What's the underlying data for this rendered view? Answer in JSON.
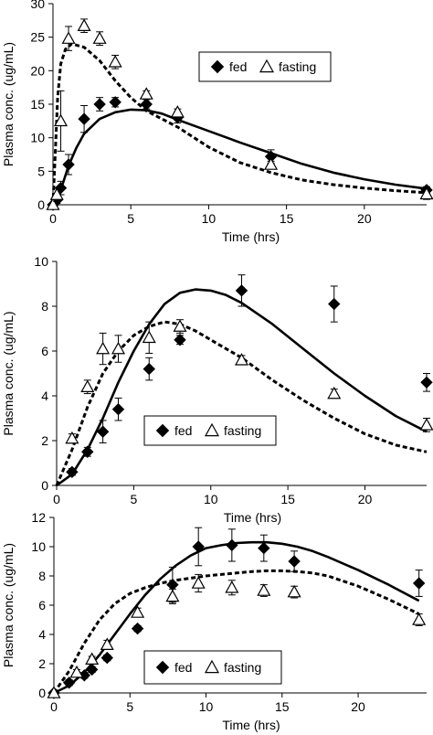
{
  "chart_data": [
    {
      "type": "scatter",
      "xlabel": "Time (hrs)",
      "ylabel": "Plasma conc. (ug/mL)",
      "xlim": [
        0,
        24
      ],
      "ylim": [
        0,
        30
      ],
      "xticks": [
        0,
        5,
        10,
        15,
        20
      ],
      "yticks": [
        0,
        5,
        10,
        15,
        20,
        25,
        30
      ],
      "legend_position": "top-right",
      "series": [
        {
          "name": "fed",
          "marker": "filled-diamond",
          "x": [
            0,
            0.25,
            0.5,
            1,
            2,
            3,
            4,
            6,
            8,
            14,
            24
          ],
          "y": [
            0,
            0.7,
            2.5,
            6,
            12.8,
            15,
            15.3,
            15,
            13,
            7.2,
            2.2
          ],
          "err": [
            0,
            0.5,
            1,
            1.5,
            2,
            1,
            0.7,
            0.7,
            0.8,
            1,
            0.5
          ]
        },
        {
          "name": "fasting",
          "marker": "open-triangle",
          "x": [
            0,
            0.25,
            0.5,
            1,
            2,
            3,
            4,
            6,
            8,
            14,
            24
          ],
          "y": [
            0,
            1.5,
            12.5,
            24.8,
            26.7,
            24.8,
            21.3,
            16.5,
            13.8,
            6,
            1.6
          ],
          "err": [
            0,
            1,
            4.5,
            1.8,
            1,
            1,
            1,
            0.5,
            0.5,
            0.5,
            0.8
          ]
        },
        {
          "name": "fed model",
          "style": "solid",
          "x": [
            0,
            0.5,
            1,
            1.5,
            2,
            3,
            4,
            5,
            6,
            7,
            8,
            10,
            12,
            14,
            16,
            18,
            20,
            22,
            24
          ],
          "y": [
            0,
            2.2,
            5.8,
            8.5,
            10.6,
            12.8,
            13.8,
            14.2,
            14.1,
            13.6,
            12.7,
            11,
            9.3,
            7.7,
            6.1,
            4.8,
            3.8,
            3,
            2.4
          ]
        },
        {
          "name": "fasting model",
          "style": "dashed",
          "x": [
            0,
            0.15,
            0.3,
            0.5,
            0.8,
            1.2,
            2,
            3,
            4,
            5,
            6,
            7,
            8,
            10,
            12,
            14,
            16,
            18,
            20,
            22,
            24
          ],
          "y": [
            0,
            8,
            16,
            21,
            23.2,
            24,
            23.5,
            21.5,
            18.5,
            16,
            14,
            12.8,
            11.6,
            8.6,
            6.3,
            4.8,
            3.7,
            3,
            2.5,
            2.1,
            1.8
          ]
        }
      ]
    },
    {
      "type": "scatter",
      "xlabel": "Time (hrs)",
      "ylabel": "Plasma conc. (ug/mL)",
      "xlim": [
        0,
        24
      ],
      "ylim": [
        0,
        10
      ],
      "xticks": [
        0,
        5,
        10,
        15,
        20
      ],
      "yticks": [
        0,
        2,
        4,
        6,
        8,
        10
      ],
      "legend_position": "bottom-center",
      "series": [
        {
          "name": "fed",
          "marker": "filled-diamond",
          "x": [
            1,
            2,
            3,
            4,
            6,
            8,
            12,
            18,
            24
          ],
          "y": [
            0.6,
            1.5,
            2.4,
            3.4,
            5.2,
            6.5,
            8.7,
            8.1,
            4.6
          ],
          "err": [
            0.15,
            0.2,
            0.5,
            0.5,
            0.5,
            0.2,
            0.7,
            0.8,
            0.4
          ]
        },
        {
          "name": "fasting",
          "marker": "open-triangle",
          "x": [
            1,
            2,
            3,
            4,
            6,
            8,
            12,
            18,
            24
          ],
          "y": [
            2.1,
            4.4,
            6.1,
            6.1,
            6.6,
            7.1,
            5.6,
            4.1,
            2.7
          ],
          "err": [
            0.2,
            0.3,
            0.7,
            0.6,
            0.7,
            0.3,
            0.2,
            0.2,
            0.3
          ]
        },
        {
          "name": "fed model",
          "style": "solid",
          "x": [
            0,
            1,
            2,
            3,
            4,
            5,
            6,
            7,
            8,
            9,
            10,
            11,
            12,
            14,
            16,
            18,
            20,
            22,
            24
          ],
          "y": [
            0,
            0.5,
            1.6,
            3,
            4.6,
            6,
            7.2,
            8.1,
            8.6,
            8.75,
            8.7,
            8.5,
            8.15,
            7.2,
            6.1,
            5,
            4,
            3.1,
            2.4
          ]
        },
        {
          "name": "fasting model",
          "style": "dashed",
          "x": [
            0,
            1,
            2,
            3,
            4,
            5,
            6,
            7,
            8,
            9,
            10,
            12,
            14,
            16,
            18,
            20,
            22,
            24
          ],
          "y": [
            0,
            1.6,
            3.5,
            5,
            6,
            6.7,
            7.1,
            7.3,
            7.2,
            6.9,
            6.5,
            5.7,
            4.7,
            3.8,
            3,
            2.3,
            1.8,
            1.5
          ]
        }
      ]
    },
    {
      "type": "scatter",
      "xlabel": "Time (hrs)",
      "ylabel": "Plasma conc. (ug/mL)",
      "xlim": [
        0,
        24.5
      ],
      "ylim": [
        0,
        12
      ],
      "xticks": [
        0,
        5,
        10,
        15,
        20
      ],
      "yticks": [
        0,
        2,
        4,
        6,
        8,
        10,
        12
      ],
      "legend_position": "bottom-center",
      "series": [
        {
          "name": "fed",
          "marker": "filled-diamond",
          "x": [
            0,
            1,
            2,
            2.5,
            3.5,
            5.5,
            7.8,
            9.5,
            11.7,
            13.8,
            15.8,
            24
          ],
          "y": [
            0,
            0.7,
            1.2,
            1.6,
            2.4,
            4.4,
            7.4,
            10,
            10.1,
            9.9,
            9,
            7.5
          ],
          "err": [
            0,
            0.2,
            0.2,
            0.2,
            0.2,
            0.2,
            1.2,
            1.3,
            1.1,
            0.9,
            0.7,
            0.9
          ]
        },
        {
          "name": "fasting",
          "marker": "open-triangle",
          "x": [
            0,
            1.5,
            2.5,
            3.5,
            5.5,
            7.8,
            9.5,
            11.7,
            13.8,
            15.8,
            24
          ],
          "y": [
            0,
            1.4,
            2.3,
            3.3,
            5.5,
            6.6,
            7.5,
            7.2,
            7,
            6.9,
            5
          ],
          "err": [
            0,
            0.2,
            0.2,
            0.3,
            0.3,
            0.5,
            0.6,
            0.5,
            0.4,
            0.4,
            0.4
          ]
        },
        {
          "name": "fed model",
          "style": "solid",
          "x": [
            0,
            1,
            2,
            3,
            4,
            5,
            6,
            7,
            8,
            9,
            10,
            11,
            12,
            13,
            14,
            15,
            16,
            17,
            18,
            20,
            22,
            24
          ],
          "y": [
            0,
            0.5,
            1.4,
            2.6,
            4,
            5.4,
            6.7,
            7.8,
            8.7,
            9.4,
            9.9,
            10.1,
            10.25,
            10.3,
            10.3,
            10.2,
            10,
            9.7,
            9.3,
            8.4,
            7.4,
            6.3
          ]
        },
        {
          "name": "fasting model",
          "style": "dashed",
          "x": [
            0,
            1,
            2,
            3,
            4,
            5,
            6,
            7,
            8,
            9,
            10,
            11,
            12,
            13,
            14,
            15,
            16,
            17,
            18,
            20,
            22,
            24
          ],
          "y": [
            0,
            1.5,
            3.4,
            5,
            6.1,
            6.8,
            7.2,
            7.5,
            7.7,
            7.85,
            8,
            8.1,
            8.2,
            8.3,
            8.35,
            8.35,
            8.3,
            8.2,
            8,
            7.3,
            6.4,
            5.4
          ]
        }
      ]
    }
  ]
}
